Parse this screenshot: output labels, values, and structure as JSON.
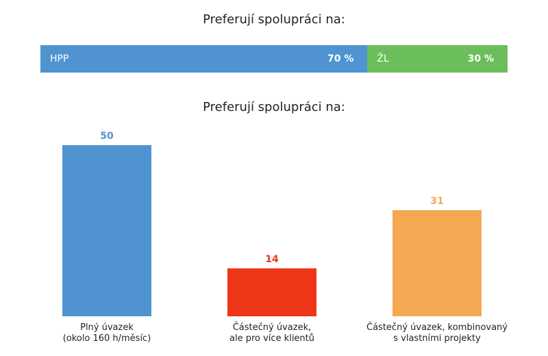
{
  "chart_data": [
    {
      "type": "bar",
      "orientation": "horizontal-stacked",
      "title": "Preferují spolupráci na:",
      "series": [
        {
          "name": "HPP",
          "value": 70,
          "label": "70 %",
          "color": "#4f94d0"
        },
        {
          "name": "ŽL",
          "value": 30,
          "label": "30 %",
          "color": "#6bbe5a"
        }
      ]
    },
    {
      "type": "bar",
      "title": "Preferují spolupráci na:",
      "categories": [
        [
          "Plný úvazek",
          "(okolo 160 h/měsíc)"
        ],
        [
          "Částečný úvazek,",
          "ale pro více klientů"
        ],
        [
          "Částečný úvazek, kombinovaný",
          "s vlastními projekty"
        ]
      ],
      "values": [
        50,
        14,
        31
      ],
      "colors": [
        "#4f94d0",
        "#ee3618",
        "#f4a852"
      ],
      "ylim": [
        0,
        50
      ]
    }
  ]
}
